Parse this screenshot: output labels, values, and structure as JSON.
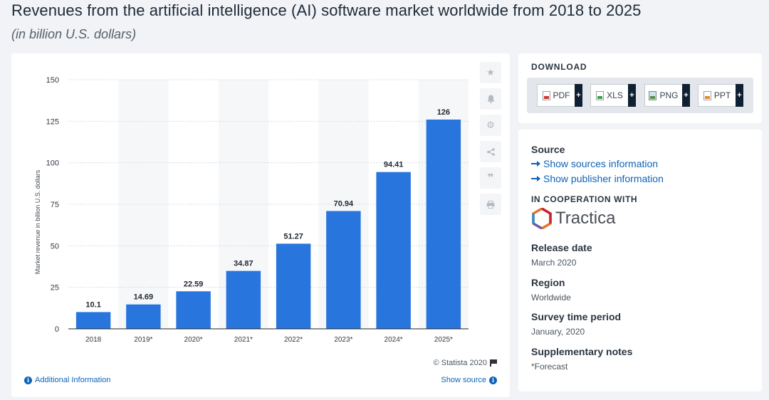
{
  "header": {
    "title": "Revenues from the artificial intelligence (AI) software market worldwide from 2018 to 2025",
    "subtitle": "(in billion U.S. dollars)"
  },
  "toolbar": {
    "icons": [
      "star-icon",
      "bell-icon",
      "gear-icon",
      "share-icon",
      "quote-icon",
      "print-icon"
    ]
  },
  "chart_data": {
    "type": "bar",
    "categories": [
      "2018",
      "2019*",
      "2020*",
      "2021*",
      "2022*",
      "2023*",
      "2024*",
      "2025*"
    ],
    "values": [
      10.1,
      14.69,
      22.59,
      34.87,
      51.27,
      70.94,
      94.41,
      126
    ],
    "value_labels": [
      "10.1",
      "14.69",
      "22.59",
      "34.87",
      "51.27",
      "70.94",
      "94.41",
      "126"
    ],
    "ylabel": "Market revenue in billion U.S. dollars",
    "xlabel": "",
    "ylim": [
      0,
      150
    ],
    "yticks": [
      0,
      25,
      50,
      75,
      100,
      125,
      150
    ],
    "grid": true,
    "bar_color": "#2876dd"
  },
  "chart_footer": {
    "credit": "© Statista 2020",
    "additional_info": "Additional Information",
    "show_source": "Show source"
  },
  "download": {
    "heading": "DOWNLOAD",
    "buttons": [
      {
        "label": "PDF",
        "icon": "pdf-file-icon"
      },
      {
        "label": "XLS",
        "icon": "xls-file-icon"
      },
      {
        "label": "PNG",
        "icon": "png-file-icon"
      },
      {
        "label": "PPT",
        "icon": "ppt-file-icon"
      }
    ],
    "plus": "+"
  },
  "info": {
    "source_heading": "Source",
    "show_sources": "Show sources information",
    "show_publisher": "Show publisher information",
    "cooperation_heading": "IN COOPERATION WITH",
    "partner": "Tractica",
    "release_heading": "Release date",
    "release_value": "March 2020",
    "region_heading": "Region",
    "region_value": "Worldwide",
    "survey_heading": "Survey time period",
    "survey_value": "January, 2020",
    "notes_heading": "Supplementary notes",
    "notes_value": "*Forecast"
  }
}
